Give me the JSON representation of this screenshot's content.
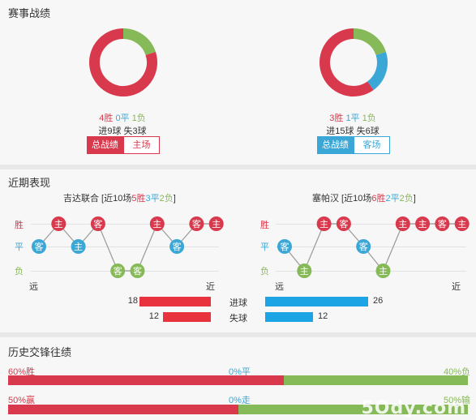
{
  "colors": {
    "win": "#d9394c",
    "draw": "#3ba7d6",
    "lose": "#86b957"
  },
  "section1": {
    "title": "赛事战绩",
    "left": {
      "win": "4胜",
      "draw": "0平",
      "lose": "1负",
      "goals": "进9球  失3球",
      "donut": {
        "win": 4,
        "draw": 0,
        "lose": 1
      },
      "tab_active": "总战绩",
      "tab_other": "主场",
      "theme": "#d9394c"
    },
    "right": {
      "win": "3胜",
      "draw": "1平",
      "lose": "1负",
      "goals": "进15球  失6球",
      "donut": {
        "win": 3,
        "draw": 1,
        "lose": 1
      },
      "tab_active": "总战绩",
      "tab_other": "客场",
      "theme": "#3ba7d6"
    }
  },
  "section2": {
    "title": "近期表现",
    "left": {
      "team": "吉达联合",
      "prefix": " [近10场",
      "w": "5胜",
      "d": "3平",
      "l": "2负",
      "suffix": "]",
      "results": [
        "D",
        "W",
        "D",
        "W",
        "L",
        "L",
        "W",
        "D",
        "W",
        "W"
      ],
      "venues": [
        "客",
        "主",
        "主",
        "客",
        "客",
        "客",
        "主",
        "客",
        "客",
        "主"
      ]
    },
    "right": {
      "team": "塞帕汉",
      "prefix": " [近10场",
      "w": "6胜",
      "d": "2平",
      "l": "2负",
      "suffix": "]",
      "results": [
        "D",
        "L",
        "W",
        "W",
        "D",
        "L",
        "W",
        "W",
        "W",
        "W"
      ],
      "venues": [
        "客",
        "主",
        "主",
        "客",
        "客",
        "主",
        "主",
        "主",
        "客",
        "主"
      ]
    },
    "level_labels": {
      "win": "胜",
      "draw": "平",
      "lose": "负"
    },
    "far": "远",
    "near": "近",
    "compare": [
      {
        "label": "进球",
        "left": 18,
        "right": 26
      },
      {
        "label": "失球",
        "left": 12,
        "right": 12
      }
    ]
  },
  "section3": {
    "title": "历史交锋往绩",
    "row1": {
      "left": "60%胜",
      "mid": "0%平",
      "right": "40%负",
      "red_fraction": 0.6
    },
    "row2": {
      "left": "50%赢",
      "mid": "0%走",
      "right": "50%输",
      "red_fraction": 0.5
    },
    "watermark": "5Ody.com"
  }
}
